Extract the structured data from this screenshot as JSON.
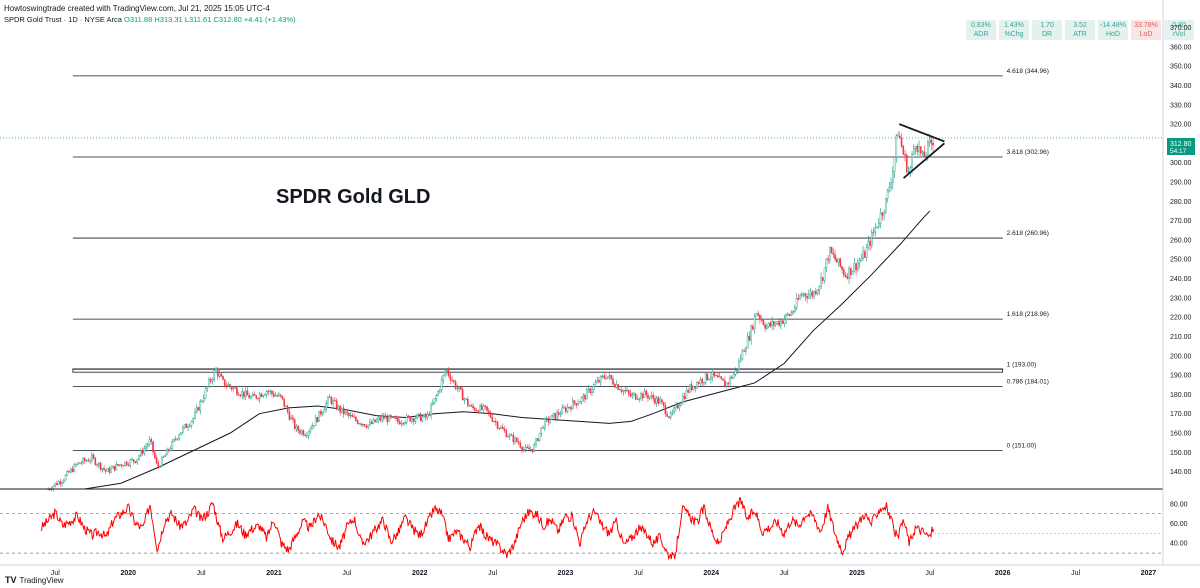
{
  "header": {
    "attribution": "Howtoswingtrade created with TradingView.com, Jul 21, 2025 15:05 UTC-4",
    "symbol": "SPDR Gold Trust · 1D · NYSE Arca",
    "open": "O311.88",
    "high": "H313.31",
    "low": "L311.61",
    "close": "C312.80",
    "change": "+4.41 (+1.43%)"
  },
  "stats": [
    {
      "value": "0.83%",
      "label": "ADR",
      "tone": "pos"
    },
    {
      "value": "1.43%",
      "label": "%Chg",
      "tone": "pos"
    },
    {
      "value": "1.70",
      "label": "DR",
      "tone": "pos"
    },
    {
      "value": "3.52",
      "label": "ATR",
      "tone": "pos"
    },
    {
      "value": "-14.48%",
      "label": "HoD",
      "tone": "pos"
    },
    {
      "value": "33.78%",
      "label": "LoD",
      "tone": "neg"
    },
    {
      "value": "0.80",
      "label": "rVol",
      "tone": "pos"
    }
  ],
  "price_tag": {
    "value": "312.80",
    "countdown": "54:17"
  },
  "footer": {
    "brand": "TradingView"
  },
  "colors": {
    "up": "#089981",
    "down": "#f23645",
    "rsi": "#ff0000",
    "ma": "#131722"
  },
  "chart_data": [
    {
      "type": "line",
      "title": "SPDR Gold GLD",
      "y_ticks": [
        140,
        150,
        160,
        170,
        180,
        190,
        200,
        210,
        220,
        230,
        240,
        250,
        260,
        270,
        280,
        290,
        300,
        310,
        320,
        330,
        340,
        350,
        360,
        370
      ],
      "ylim": [
        131,
        377
      ],
      "x_ticks": [
        "Jul",
        "2020",
        "Jul",
        "2021",
        "Jul",
        "2022",
        "Jul",
        "2023",
        "Jul",
        "2024",
        "Jul",
        "2025",
        "Jul",
        "2026",
        "Jul",
        "2027"
      ],
      "x_tick_dates": [
        2019.5,
        2020,
        2020.5,
        2021,
        2021.5,
        2022,
        2022.5,
        2023,
        2023.5,
        2024,
        2024.5,
        2025,
        2025.5,
        2026,
        2026.5,
        2027
      ],
      "xlim": [
        2019.12,
        2027.1
      ],
      "fib_levels": [
        {
          "label": "4.618 (344.96)",
          "value": 344.96
        },
        {
          "label": "3.618 (302.96)",
          "value": 302.96
        },
        {
          "label": "2.618 (260.96)",
          "value": 260.96
        },
        {
          "label": "1.618 (218.96)",
          "value": 218.96
        },
        {
          "label": "1 (193.00)",
          "value": 193.0
        },
        {
          "label": "0.786 (184.01)",
          "value": 184.01
        },
        {
          "label": "0 (151.00)",
          "value": 151.0
        }
      ],
      "fib_x_range": [
        2019.62,
        2026.0
      ],
      "resistance_band": [
        191.5,
        193.2
      ],
      "current_price": 312.8,
      "price_path": [
        [
          2019.45,
          131
        ],
        [
          2019.55,
          136
        ],
        [
          2019.65,
          144
        ],
        [
          2019.75,
          147
        ],
        [
          2019.85,
          140
        ],
        [
          2019.95,
          144
        ],
        [
          2020.05,
          146
        ],
        [
          2020.15,
          156
        ],
        [
          2020.2,
          142
        ],
        [
          2020.25,
          148
        ],
        [
          2020.35,
          160
        ],
        [
          2020.45,
          168
        ],
        [
          2020.55,
          185
        ],
        [
          2020.6,
          193
        ],
        [
          2020.65,
          186
        ],
        [
          2020.75,
          182
        ],
        [
          2020.85,
          178
        ],
        [
          2020.95,
          182
        ],
        [
          2021.05,
          178
        ],
        [
          2021.15,
          162
        ],
        [
          2021.22,
          160
        ],
        [
          2021.3,
          168
        ],
        [
          2021.38,
          178
        ],
        [
          2021.45,
          172
        ],
        [
          2021.55,
          167
        ],
        [
          2021.65,
          164
        ],
        [
          2021.75,
          168
        ],
        [
          2021.85,
          166
        ],
        [
          2021.95,
          168
        ],
        [
          2022.05,
          168
        ],
        [
          2022.12,
          180
        ],
        [
          2022.18,
          193
        ],
        [
          2022.25,
          184
        ],
        [
          2022.35,
          173
        ],
        [
          2022.45,
          172
        ],
        [
          2022.55,
          163
        ],
        [
          2022.62,
          158
        ],
        [
          2022.68,
          155
        ],
        [
          2022.72,
          151
        ],
        [
          2022.78,
          152
        ],
        [
          2022.85,
          165
        ],
        [
          2022.95,
          170
        ],
        [
          2023.05,
          175
        ],
        [
          2023.12,
          178
        ],
        [
          2023.2,
          185
        ],
        [
          2023.28,
          190
        ],
        [
          2023.35,
          185
        ],
        [
          2023.45,
          179
        ],
        [
          2023.55,
          180
        ],
        [
          2023.65,
          176
        ],
        [
          2023.72,
          168
        ],
        [
          2023.8,
          178
        ],
        [
          2023.85,
          183
        ],
        [
          2023.92,
          187
        ],
        [
          2024.0,
          190
        ],
        [
          2024.1,
          185
        ],
        [
          2024.17,
          192
        ],
        [
          2024.22,
          203
        ],
        [
          2024.27,
          212
        ],
        [
          2024.31,
          223
        ],
        [
          2024.38,
          215
        ],
        [
          2024.48,
          218
        ],
        [
          2024.55,
          222
        ],
        [
          2024.62,
          232
        ],
        [
          2024.7,
          232
        ],
        [
          2024.76,
          240
        ],
        [
          2024.81,
          254
        ],
        [
          2024.86,
          249
        ],
        [
          2024.92,
          242
        ],
        [
          2024.98,
          246
        ],
        [
          2025.05,
          252
        ],
        [
          2025.12,
          265
        ],
        [
          2025.2,
          280
        ],
        [
          2025.25,
          298
        ],
        [
          2025.28,
          317
        ],
        [
          2025.32,
          304
        ],
        [
          2025.36,
          294
        ],
        [
          2025.4,
          312
        ],
        [
          2025.45,
          302
        ],
        [
          2025.49,
          308
        ],
        [
          2025.53,
          312.8
        ]
      ],
      "ma_path": [
        [
          2019.7,
          131
        ],
        [
          2019.95,
          134
        ],
        [
          2020.2,
          142
        ],
        [
          2020.45,
          151
        ],
        [
          2020.7,
          160
        ],
        [
          2020.9,
          170
        ],
        [
          2021.1,
          173
        ],
        [
          2021.3,
          174
        ],
        [
          2021.5,
          172
        ],
        [
          2021.7,
          169
        ],
        [
          2021.9,
          168
        ],
        [
          2022.1,
          170
        ],
        [
          2022.3,
          171
        ],
        [
          2022.5,
          170
        ],
        [
          2022.7,
          168
        ],
        [
          2022.9,
          167
        ],
        [
          2023.1,
          166
        ],
        [
          2023.3,
          165
        ],
        [
          2023.45,
          166
        ],
        [
          2023.6,
          170
        ],
        [
          2023.8,
          176
        ],
        [
          2024.0,
          180
        ],
        [
          2024.15,
          183
        ],
        [
          2024.3,
          186
        ],
        [
          2024.5,
          196
        ],
        [
          2024.7,
          213
        ],
        [
          2024.9,
          227
        ],
        [
          2025.1,
          242
        ],
        [
          2025.3,
          258
        ],
        [
          2025.45,
          271
        ],
        [
          2025.5,
          275
        ]
      ],
      "triangle": {
        "upper": [
          [
            2025.29,
            320
          ],
          [
            2025.6,
            311
          ]
        ],
        "lower": [
          [
            2025.32,
            292
          ],
          [
            2025.6,
            310
          ]
        ]
      }
    },
    {
      "type": "line",
      "series": [
        {
          "name": "",
          "values": []
        }
      ],
      "y_ticks": [
        40.0,
        60.0,
        80.0
      ],
      "ylim": [
        23,
        92
      ],
      "overbought": 70,
      "oversold": 30,
      "midline": 50,
      "rsi_path": [
        [
          2019.4,
          55
        ],
        [
          2019.5,
          71
        ],
        [
          2019.55,
          58
        ],
        [
          2019.6,
          62
        ],
        [
          2019.65,
          68
        ],
        [
          2019.7,
          55
        ],
        [
          2019.75,
          48
        ],
        [
          2019.8,
          52
        ],
        [
          2019.85,
          46
        ],
        [
          2019.9,
          64
        ],
        [
          2019.95,
          70
        ],
        [
          2020.0,
          76
        ],
        [
          2020.05,
          60
        ],
        [
          2020.1,
          55
        ],
        [
          2020.15,
          80
        ],
        [
          2020.2,
          34
        ],
        [
          2020.25,
          63
        ],
        [
          2020.3,
          70
        ],
        [
          2020.35,
          58
        ],
        [
          2020.4,
          60
        ],
        [
          2020.45,
          75
        ],
        [
          2020.5,
          64
        ],
        [
          2020.55,
          72
        ],
        [
          2020.58,
          82
        ],
        [
          2020.62,
          58
        ],
        [
          2020.65,
          45
        ],
        [
          2020.7,
          52
        ],
        [
          2020.75,
          60
        ],
        [
          2020.8,
          49
        ],
        [
          2020.85,
          55
        ],
        [
          2020.9,
          58
        ],
        [
          2020.95,
          45
        ],
        [
          2021.0,
          65
        ],
        [
          2021.05,
          40
        ],
        [
          2021.1,
          33
        ],
        [
          2021.15,
          48
        ],
        [
          2021.2,
          62
        ],
        [
          2021.25,
          55
        ],
        [
          2021.3,
          70
        ],
        [
          2021.35,
          60
        ],
        [
          2021.4,
          42
        ],
        [
          2021.45,
          36
        ],
        [
          2021.5,
          56
        ],
        [
          2021.55,
          66
        ],
        [
          2021.6,
          40
        ],
        [
          2021.65,
          45
        ],
        [
          2021.7,
          55
        ],
        [
          2021.75,
          64
        ],
        [
          2021.8,
          42
        ],
        [
          2021.85,
          50
        ],
        [
          2021.9,
          66
        ],
        [
          2021.95,
          55
        ],
        [
          2022.0,
          48
        ],
        [
          2022.05,
          60
        ],
        [
          2022.1,
          75
        ],
        [
          2022.15,
          70
        ],
        [
          2022.2,
          44
        ],
        [
          2022.25,
          52
        ],
        [
          2022.3,
          45
        ],
        [
          2022.35,
          36
        ],
        [
          2022.4,
          60
        ],
        [
          2022.45,
          48
        ],
        [
          2022.5,
          42
        ],
        [
          2022.55,
          36
        ],
        [
          2022.6,
          28
        ],
        [
          2022.65,
          40
        ],
        [
          2022.7,
          62
        ],
        [
          2022.75,
          72
        ],
        [
          2022.8,
          70
        ],
        [
          2022.85,
          58
        ],
        [
          2022.9,
          64
        ],
        [
          2022.95,
          52
        ],
        [
          2023.0,
          68
        ],
        [
          2023.05,
          66
        ],
        [
          2023.1,
          40
        ],
        [
          2023.15,
          64
        ],
        [
          2023.2,
          72
        ],
        [
          2023.25,
          58
        ],
        [
          2023.3,
          50
        ],
        [
          2023.35,
          62
        ],
        [
          2023.4,
          38
        ],
        [
          2023.45,
          45
        ],
        [
          2023.5,
          54
        ],
        [
          2023.55,
          52
        ],
        [
          2023.6,
          40
        ],
        [
          2023.65,
          46
        ],
        [
          2023.7,
          30
        ],
        [
          2023.75,
          24
        ],
        [
          2023.8,
          75
        ],
        [
          2023.85,
          68
        ],
        [
          2023.9,
          60
        ],
        [
          2023.95,
          76
        ],
        [
          2024.0,
          54
        ],
        [
          2024.05,
          38
        ],
        [
          2024.1,
          56
        ],
        [
          2024.15,
          72
        ],
        [
          2024.2,
          84
        ],
        [
          2024.25,
          64
        ],
        [
          2024.3,
          74
        ],
        [
          2024.35,
          52
        ],
        [
          2024.4,
          56
        ],
        [
          2024.45,
          62
        ],
        [
          2024.5,
          50
        ],
        [
          2024.55,
          64
        ],
        [
          2024.6,
          58
        ],
        [
          2024.65,
          70
        ],
        [
          2024.7,
          68
        ],
        [
          2024.75,
          52
        ],
        [
          2024.8,
          76
        ],
        [
          2024.85,
          50
        ],
        [
          2024.9,
          32
        ],
        [
          2024.95,
          48
        ],
        [
          2025.0,
          58
        ],
        [
          2025.05,
          70
        ],
        [
          2025.1,
          60
        ],
        [
          2025.15,
          74
        ],
        [
          2025.2,
          78
        ],
        [
          2025.25,
          56
        ],
        [
          2025.28,
          44
        ],
        [
          2025.32,
          64
        ],
        [
          2025.36,
          40
        ],
        [
          2025.4,
          56
        ],
        [
          2025.45,
          52
        ],
        [
          2025.5,
          46
        ],
        [
          2025.53,
          60
        ]
      ]
    }
  ]
}
